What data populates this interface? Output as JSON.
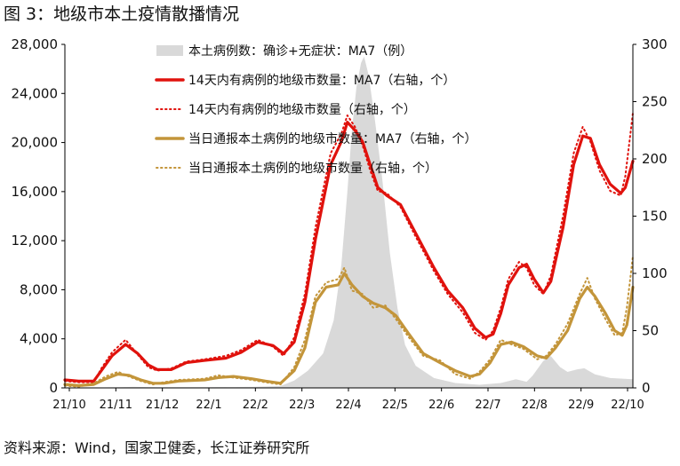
{
  "title": "图 3：地级市本土疫情散播情况",
  "source": "资料来源：Wind，国家卫健委，长江证券研究所",
  "chart_data": {
    "type": "line",
    "x_ticks": [
      "21/10",
      "21/11",
      "21/12",
      "22/1",
      "22/2",
      "22/3",
      "22/4",
      "22/5",
      "22/6",
      "22/7",
      "22/8",
      "22/9",
      "22/10"
    ],
    "x_range": [
      "2021-10-01",
      "2022-10-10"
    ],
    "y_left": {
      "range": [
        0,
        28000
      ],
      "ticks": [
        0,
        4000,
        8000,
        12000,
        16000,
        20000,
        24000,
        28000
      ],
      "tick_labels": [
        "0",
        "4,000",
        "8,000",
        "12,000",
        "16,000",
        "20,000",
        "24,000",
        "28,000"
      ]
    },
    "y_right": {
      "range": [
        0,
        300
      ],
      "ticks": [
        0,
        50,
        100,
        150,
        200,
        250,
        300
      ],
      "tick_labels": [
        "0",
        "50",
        "100",
        "150",
        "200",
        "250",
        "300"
      ]
    },
    "legend": {
      "placement": "top-center"
    },
    "series": [
      {
        "name": "本土病例数：确诊+无症状：MA7（例）",
        "axis": "left",
        "style": "area",
        "color": "#d9d9d9",
        "points": [
          [
            "2021-10-01",
            0
          ],
          [
            "2021-11-01",
            40
          ],
          [
            "2021-11-15",
            80
          ],
          [
            "2021-12-01",
            40
          ],
          [
            "2022-01-01",
            60
          ],
          [
            "2022-02-01",
            80
          ],
          [
            "2022-02-20",
            150
          ],
          [
            "2022-03-01",
            600
          ],
          [
            "2022-03-10",
            1400
          ],
          [
            "2022-03-20",
            2800
          ],
          [
            "2022-03-27",
            5500
          ],
          [
            "2022-04-01",
            10000
          ],
          [
            "2022-04-05",
            16000
          ],
          [
            "2022-04-08",
            21000
          ],
          [
            "2022-04-11",
            24500
          ],
          [
            "2022-04-14",
            26500
          ],
          [
            "2022-04-16",
            27000
          ],
          [
            "2022-04-19",
            25500
          ],
          [
            "2022-04-23",
            22000
          ],
          [
            "2022-04-28",
            17000
          ],
          [
            "2022-05-03",
            11000
          ],
          [
            "2022-05-08",
            6500
          ],
          [
            "2022-05-13",
            3500
          ],
          [
            "2022-05-20",
            1800
          ],
          [
            "2022-06-01",
            800
          ],
          [
            "2022-06-15",
            400
          ],
          [
            "2022-07-01",
            250
          ],
          [
            "2022-07-15",
            400
          ],
          [
            "2022-07-25",
            700
          ],
          [
            "2022-08-01",
            500
          ],
          [
            "2022-08-05",
            1000
          ],
          [
            "2022-08-12",
            2200
          ],
          [
            "2022-08-17",
            2600
          ],
          [
            "2022-08-23",
            1700
          ],
          [
            "2022-08-28",
            1300
          ],
          [
            "2022-09-03",
            1500
          ],
          [
            "2022-09-08",
            1600
          ],
          [
            "2022-09-15",
            1100
          ],
          [
            "2022-09-25",
            800
          ],
          [
            "2022-10-10",
            700
          ]
        ]
      },
      {
        "name": "14天内有病例的地级市数量：MA7（右轴，个）",
        "axis": "right",
        "style": "solid",
        "color": "#e0120d",
        "points": [
          [
            "2021-10-01",
            7
          ],
          [
            "2021-10-10",
            6
          ],
          [
            "2021-10-20",
            6
          ],
          [
            "2021-10-25",
            15
          ],
          [
            "2021-11-01",
            28
          ],
          [
            "2021-11-10",
            38
          ],
          [
            "2021-11-18",
            30
          ],
          [
            "2021-11-25",
            20
          ],
          [
            "2021-12-01",
            16
          ],
          [
            "2021-12-10",
            16
          ],
          [
            "2021-12-20",
            22
          ],
          [
            "2022-01-01",
            24
          ],
          [
            "2022-01-15",
            26
          ],
          [
            "2022-01-25",
            31
          ],
          [
            "2022-02-05",
            40
          ],
          [
            "2022-02-15",
            37
          ],
          [
            "2022-02-22",
            30
          ],
          [
            "2022-03-01",
            40
          ],
          [
            "2022-03-08",
            75
          ],
          [
            "2022-03-15",
            130
          ],
          [
            "2022-03-25",
            195
          ],
          [
            "2022-04-01",
            215
          ],
          [
            "2022-04-05",
            232
          ],
          [
            "2022-04-10",
            225
          ],
          [
            "2022-04-15",
            215
          ],
          [
            "2022-04-20",
            195
          ],
          [
            "2022-04-25",
            175
          ],
          [
            "2022-05-01",
            168
          ],
          [
            "2022-05-10",
            160
          ],
          [
            "2022-05-20",
            135
          ],
          [
            "2022-06-01",
            105
          ],
          [
            "2022-06-10",
            85
          ],
          [
            "2022-06-20",
            70
          ],
          [
            "2022-06-28",
            52
          ],
          [
            "2022-07-05",
            44
          ],
          [
            "2022-07-10",
            47
          ],
          [
            "2022-07-15",
            65
          ],
          [
            "2022-07-20",
            90
          ],
          [
            "2022-07-27",
            105
          ],
          [
            "2022-08-01",
            108
          ],
          [
            "2022-08-06",
            95
          ],
          [
            "2022-08-12",
            83
          ],
          [
            "2022-08-17",
            93
          ],
          [
            "2022-08-25",
            140
          ],
          [
            "2022-09-01",
            195
          ],
          [
            "2022-09-07",
            220
          ],
          [
            "2022-09-12",
            218
          ],
          [
            "2022-09-18",
            195
          ],
          [
            "2022-09-25",
            178
          ],
          [
            "2022-10-02",
            170
          ],
          [
            "2022-10-05",
            175
          ],
          [
            "2022-10-10",
            198
          ]
        ]
      },
      {
        "name": "14天内有病例的地级市数量（右轴，个）",
        "axis": "right",
        "style": "dotted",
        "color": "#e0120d",
        "points": [
          [
            "2021-10-01",
            6
          ],
          [
            "2021-10-10",
            5
          ],
          [
            "2021-10-20",
            5
          ],
          [
            "2021-10-25",
            17
          ],
          [
            "2021-11-01",
            31
          ],
          [
            "2021-11-10",
            42
          ],
          [
            "2021-11-18",
            29
          ],
          [
            "2021-11-25",
            18
          ],
          [
            "2021-12-01",
            15
          ],
          [
            "2021-12-10",
            17
          ],
          [
            "2021-12-20",
            23
          ],
          [
            "2022-01-01",
            25
          ],
          [
            "2022-01-15",
            28
          ],
          [
            "2022-01-25",
            33
          ],
          [
            "2022-02-05",
            42
          ],
          [
            "2022-02-15",
            36
          ],
          [
            "2022-02-22",
            28
          ],
          [
            "2022-03-01",
            44
          ],
          [
            "2022-03-08",
            82
          ],
          [
            "2022-03-15",
            140
          ],
          [
            "2022-03-25",
            205
          ],
          [
            "2022-04-01",
            222
          ],
          [
            "2022-04-05",
            238
          ],
          [
            "2022-04-10",
            228
          ],
          [
            "2022-04-15",
            212
          ],
          [
            "2022-04-20",
            190
          ],
          [
            "2022-04-25",
            172
          ],
          [
            "2022-05-01",
            170
          ],
          [
            "2022-05-10",
            158
          ],
          [
            "2022-05-20",
            132
          ],
          [
            "2022-06-01",
            102
          ],
          [
            "2022-06-10",
            82
          ],
          [
            "2022-06-20",
            66
          ],
          [
            "2022-06-28",
            48
          ],
          [
            "2022-07-05",
            42
          ],
          [
            "2022-07-10",
            50
          ],
          [
            "2022-07-15",
            70
          ],
          [
            "2022-07-20",
            95
          ],
          [
            "2022-07-27",
            110
          ],
          [
            "2022-08-01",
            105
          ],
          [
            "2022-08-06",
            90
          ],
          [
            "2022-08-12",
            82
          ],
          [
            "2022-08-17",
            98
          ],
          [
            "2022-08-25",
            150
          ],
          [
            "2022-09-01",
            205
          ],
          [
            "2022-09-07",
            228
          ],
          [
            "2022-09-12",
            215
          ],
          [
            "2022-09-18",
            190
          ],
          [
            "2022-09-25",
            172
          ],
          [
            "2022-10-02",
            168
          ],
          [
            "2022-10-05",
            185
          ],
          [
            "2022-10-10",
            240
          ]
        ]
      },
      {
        "name": "当日通报本土病例的地级市数量：MA7（右轴，个）",
        "axis": "right",
        "style": "solid",
        "color": "#c3953a",
        "points": [
          [
            "2021-10-01",
            3
          ],
          [
            "2021-10-10",
            2
          ],
          [
            "2021-10-20",
            3
          ],
          [
            "2021-10-28",
            8
          ],
          [
            "2021-11-05",
            12
          ],
          [
            "2021-11-12",
            11
          ],
          [
            "2021-11-20",
            7
          ],
          [
            "2021-11-28",
            4
          ],
          [
            "2021-12-05",
            4
          ],
          [
            "2021-12-15",
            6
          ],
          [
            "2022-01-01",
            7
          ],
          [
            "2022-01-10",
            9
          ],
          [
            "2022-01-20",
            10
          ],
          [
            "2022-02-01",
            8
          ],
          [
            "2022-02-10",
            6
          ],
          [
            "2022-02-20",
            4
          ],
          [
            "2022-03-01",
            15
          ],
          [
            "2022-03-08",
            35
          ],
          [
            "2022-03-15",
            75
          ],
          [
            "2022-03-22",
            88
          ],
          [
            "2022-03-30",
            90
          ],
          [
            "2022-04-03",
            100
          ],
          [
            "2022-04-08",
            90
          ],
          [
            "2022-04-15",
            80
          ],
          [
            "2022-04-22",
            74
          ],
          [
            "2022-04-30",
            70
          ],
          [
            "2022-05-07",
            63
          ],
          [
            "2022-05-15",
            48
          ],
          [
            "2022-05-25",
            30
          ],
          [
            "2022-06-05",
            22
          ],
          [
            "2022-06-15",
            15
          ],
          [
            "2022-06-25",
            10
          ],
          [
            "2022-07-01",
            12
          ],
          [
            "2022-07-08",
            22
          ],
          [
            "2022-07-15",
            38
          ],
          [
            "2022-07-22",
            40
          ],
          [
            "2022-07-30",
            36
          ],
          [
            "2022-08-08",
            28
          ],
          [
            "2022-08-14",
            26
          ],
          [
            "2022-08-20",
            35
          ],
          [
            "2022-08-28",
            50
          ],
          [
            "2022-09-05",
            78
          ],
          [
            "2022-09-10",
            88
          ],
          [
            "2022-09-15",
            80
          ],
          [
            "2022-09-22",
            65
          ],
          [
            "2022-09-28",
            50
          ],
          [
            "2022-10-03",
            46
          ],
          [
            "2022-10-06",
            55
          ],
          [
            "2022-10-10",
            88
          ]
        ]
      },
      {
        "name": "当日通报本土病例的地级市数量（右轴，个）",
        "axis": "right",
        "style": "dotted",
        "color": "#c3953a",
        "points": [
          [
            "2021-10-01",
            2
          ],
          [
            "2021-10-10",
            1
          ],
          [
            "2021-10-20",
            4
          ],
          [
            "2021-10-28",
            10
          ],
          [
            "2021-11-05",
            14
          ],
          [
            "2021-11-12",
            10
          ],
          [
            "2021-11-20",
            6
          ],
          [
            "2021-11-28",
            3
          ],
          [
            "2021-12-05",
            5
          ],
          [
            "2021-12-15",
            7
          ],
          [
            "2022-01-01",
            8
          ],
          [
            "2022-01-10",
            11
          ],
          [
            "2022-01-20",
            9
          ],
          [
            "2022-02-01",
            7
          ],
          [
            "2022-02-10",
            5
          ],
          [
            "2022-02-20",
            3
          ],
          [
            "2022-03-01",
            18
          ],
          [
            "2022-03-08",
            42
          ],
          [
            "2022-03-15",
            80
          ],
          [
            "2022-03-22",
            92
          ],
          [
            "2022-03-30",
            95
          ],
          [
            "2022-04-03",
            105
          ],
          [
            "2022-04-08",
            85
          ],
          [
            "2022-04-15",
            82
          ],
          [
            "2022-04-22",
            70
          ],
          [
            "2022-04-30",
            72
          ],
          [
            "2022-05-07",
            60
          ],
          [
            "2022-05-15",
            45
          ],
          [
            "2022-05-25",
            28
          ],
          [
            "2022-06-05",
            24
          ],
          [
            "2022-06-15",
            12
          ],
          [
            "2022-06-25",
            8
          ],
          [
            "2022-07-01",
            14
          ],
          [
            "2022-07-08",
            25
          ],
          [
            "2022-07-15",
            42
          ],
          [
            "2022-07-22",
            38
          ],
          [
            "2022-07-30",
            34
          ],
          [
            "2022-08-08",
            25
          ],
          [
            "2022-08-14",
            28
          ],
          [
            "2022-08-20",
            38
          ],
          [
            "2022-08-28",
            56
          ],
          [
            "2022-09-05",
            82
          ],
          [
            "2022-09-10",
            96
          ],
          [
            "2022-09-15",
            78
          ],
          [
            "2022-09-22",
            60
          ],
          [
            "2022-09-28",
            46
          ],
          [
            "2022-10-03",
            48
          ],
          [
            "2022-10-06",
            70
          ],
          [
            "2022-10-10",
            115
          ]
        ]
      }
    ]
  }
}
